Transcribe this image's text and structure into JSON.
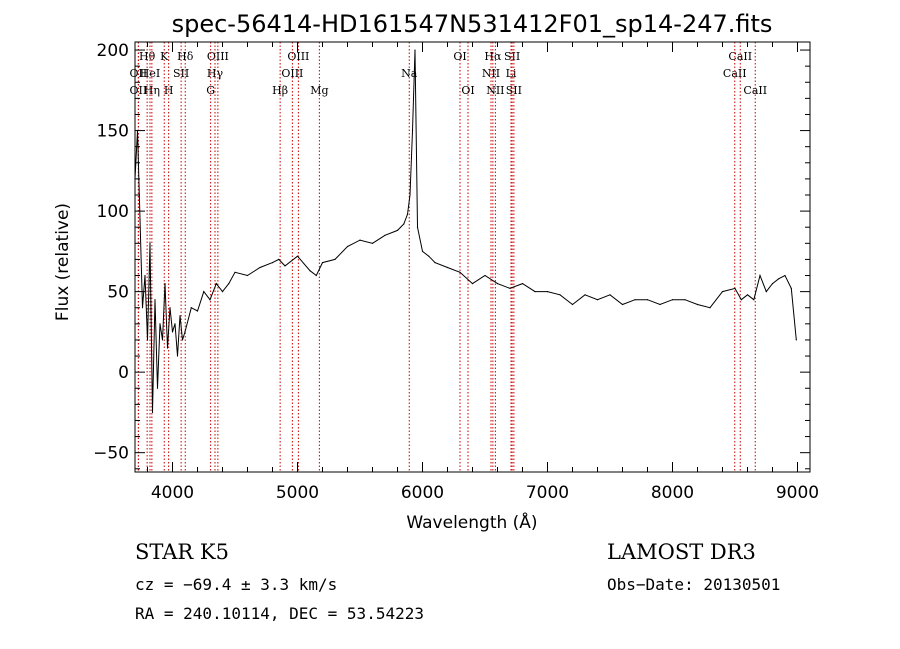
{
  "chart_data": {
    "type": "line",
    "title": "spec-56414-HD161547N531412F01_sp14-247.fits",
    "xlabel": "Wavelength (Å)",
    "ylabel": "Flux (relative)",
    "xlim": [
      3700,
      9100
    ],
    "ylim": [
      -62,
      205
    ],
    "xticks": [
      4000,
      5000,
      6000,
      7000,
      8000,
      9000
    ],
    "yticks": [
      -50,
      0,
      50,
      100,
      150,
      200
    ],
    "grid": false,
    "series": [
      {
        "x": [
          3700,
          3720,
          3740,
          3760,
          3780,
          3800,
          3820,
          3840,
          3860,
          3880,
          3900,
          3920,
          3940,
          3960,
          3980,
          4000,
          4020,
          4040,
          4060,
          4080,
          4100,
          4150,
          4200,
          4250,
          4300,
          4350,
          4400,
          4450,
          4500,
          4600,
          4700,
          4800,
          4850,
          4900,
          5000,
          5100,
          5150,
          5200,
          5300,
          5400,
          5500,
          5600,
          5700,
          5800,
          5850,
          5880,
          5900,
          5920,
          5940,
          5960,
          6000,
          6050,
          6100,
          6200,
          6300,
          6400,
          6500,
          6600,
          6700,
          6800,
          6900,
          7000,
          7100,
          7200,
          7300,
          7400,
          7500,
          7600,
          7700,
          7800,
          7900,
          8000,
          8100,
          8200,
          8300,
          8400,
          8500,
          8550,
          8600,
          8650,
          8700,
          8750,
          8800,
          8850,
          8900,
          8950,
          8990
        ],
        "y": [
          120,
          150,
          95,
          40,
          60,
          20,
          80,
          -25,
          45,
          -10,
          30,
          20,
          55,
          15,
          40,
          25,
          30,
          10,
          35,
          20,
          25,
          40,
          38,
          50,
          45,
          55,
          50,
          55,
          62,
          60,
          65,
          68,
          70,
          66,
          72,
          63,
          60,
          68,
          70,
          78,
          82,
          80,
          85,
          88,
          92,
          98,
          110,
          150,
          200,
          90,
          75,
          72,
          68,
          65,
          62,
          55,
          60,
          55,
          52,
          55,
          50,
          50,
          48,
          42,
          48,
          45,
          48,
          42,
          45,
          45,
          42,
          45,
          45,
          42,
          40,
          50,
          52,
          45,
          48,
          45,
          60,
          50,
          55,
          58,
          60,
          52,
          20
        ]
      }
    ],
    "line_markers": [
      {
        "label": "Hθ",
        "x": 3797,
        "row": 1
      },
      {
        "label": "OII",
        "x": 3727,
        "row": 2
      },
      {
        "label": "HeI",
        "x": 3820,
        "row": 2
      },
      {
        "label": "OII",
        "x": 3727,
        "row": 3
      },
      {
        "label": "Hη",
        "x": 3835,
        "row": 3
      },
      {
        "label": "K",
        "x": 3934,
        "row": 1
      },
      {
        "label": "SII",
        "x": 4069,
        "row": 2
      },
      {
        "label": "H",
        "x": 3969,
        "row": 3
      },
      {
        "label": "Hδ",
        "x": 4102,
        "row": 1
      },
      {
        "label": "OIII",
        "x": 4363,
        "row": 1
      },
      {
        "label": "Hγ",
        "x": 4340,
        "row": 2
      },
      {
        "label": "G",
        "x": 4305,
        "row": 3
      },
      {
        "label": "OIII",
        "x": 5007,
        "row": 1
      },
      {
        "label": "OIII",
        "x": 4959,
        "row": 2
      },
      {
        "label": "Hβ",
        "x": 4861,
        "row": 3
      },
      {
        "label": "Mg",
        "x": 5175,
        "row": 3
      },
      {
        "label": "Na",
        "x": 5894,
        "row": 2
      },
      {
        "label": "OI",
        "x": 6300,
        "row": 1
      },
      {
        "label": "OI",
        "x": 6364,
        "row": 3
      },
      {
        "label": "Hα",
        "x": 6563,
        "row": 1
      },
      {
        "label": "SII",
        "x": 6717,
        "row": 1
      },
      {
        "label": "NII",
        "x": 6548,
        "row": 2
      },
      {
        "label": "Li",
        "x": 6708,
        "row": 2
      },
      {
        "label": "NII",
        "x": 6583,
        "row": 3
      },
      {
        "label": "SII",
        "x": 6731,
        "row": 3
      },
      {
        "label": "CaII",
        "x": 8542,
        "row": 1
      },
      {
        "label": "CaII",
        "x": 8498,
        "row": 2
      },
      {
        "label": "CaII",
        "x": 8662,
        "row": 3
      }
    ]
  },
  "info": {
    "class_line": "STAR    K5",
    "survey": "LAMOST DR3",
    "cz": "cz = −69.4 ± 3.3 km/s",
    "obs_date": "Obs−Date: 20130501",
    "coords": "RA = 240.10114, DEC =  53.54223"
  },
  "colors": {
    "spectrum": "#000000",
    "marker_lines": "#cc0000",
    "axes": "#000000"
  }
}
